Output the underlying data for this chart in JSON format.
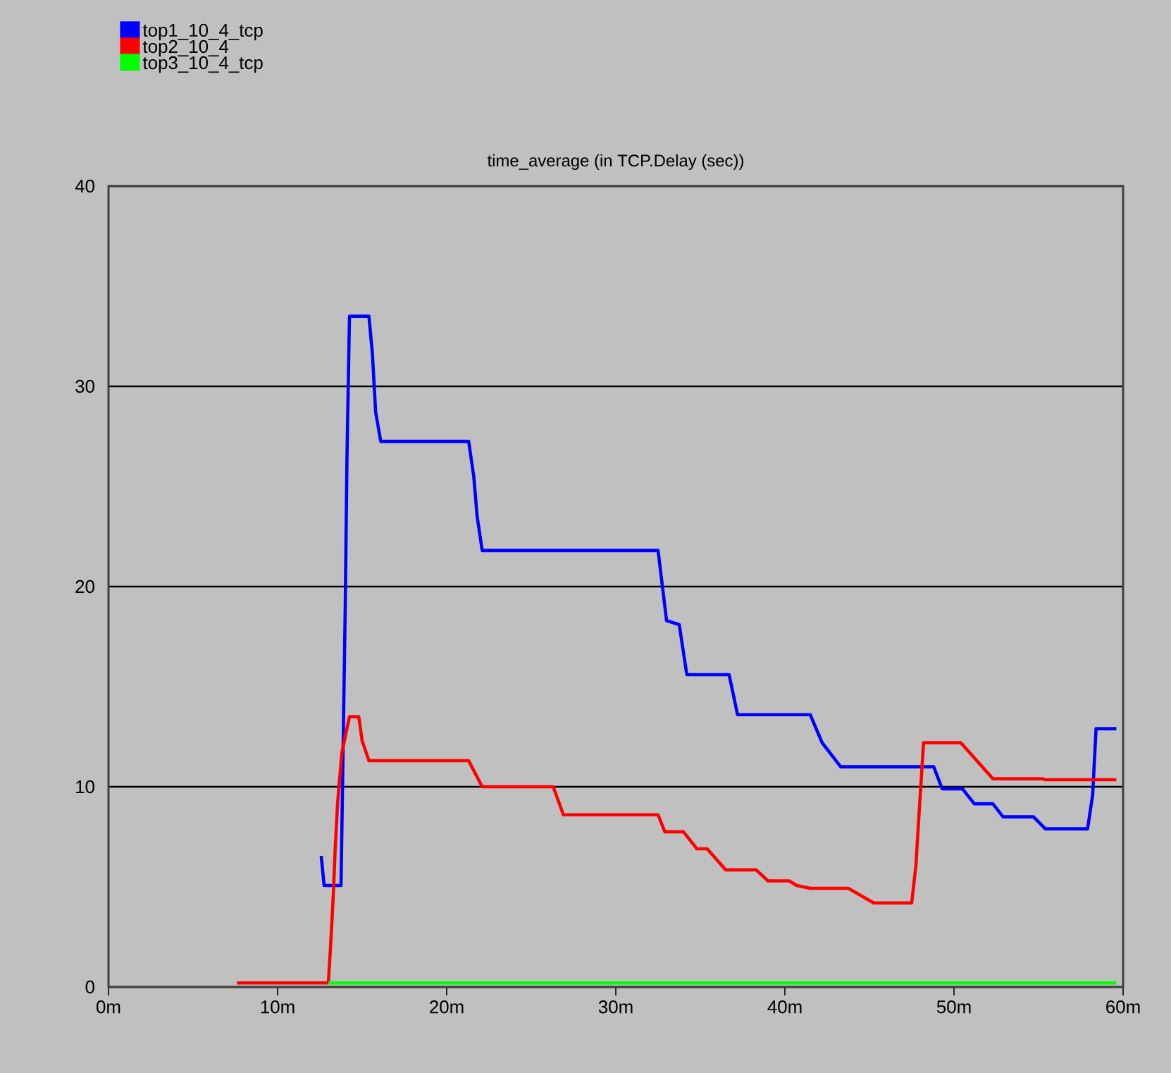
{
  "chart_data": {
    "type": "line",
    "title": "time_average (in TCP.Delay (sec))",
    "xlim": [
      0,
      60
    ],
    "ylim": [
      0,
      40
    ],
    "xticks": [
      {
        "value": 0,
        "label": "0m"
      },
      {
        "value": 10,
        "label": "10m"
      },
      {
        "value": 20,
        "label": "20m"
      },
      {
        "value": 30,
        "label": "30m"
      },
      {
        "value": 40,
        "label": "40m"
      },
      {
        "value": 50,
        "label": "50m"
      },
      {
        "value": 60,
        "label": "60m"
      }
    ],
    "yticks": [
      0,
      10,
      20,
      30,
      40
    ],
    "grid": "y",
    "legend": "top left",
    "series": [
      {
        "name": "top1_10_4_tcp",
        "color": "#0000ff",
        "x": [
          12.58,
          12.75,
          13.75,
          14.0,
          14.1,
          14.25,
          15.4,
          15.6,
          15.8,
          16.1,
          21.3,
          21.6,
          21.8,
          22.1,
          32.5,
          33.0,
          33.75,
          34.2,
          36.7,
          37.2,
          41.5,
          42.2,
          43.3,
          48.8,
          49.3,
          50.5,
          51.2,
          52.3,
          52.9,
          54.7,
          55.4,
          57.9,
          58.2,
          58.4,
          59.6
        ],
        "values": [
          6.55,
          5.07,
          5.07,
          19.0,
          26.3,
          33.5,
          33.5,
          31.7,
          28.7,
          27.25,
          27.25,
          25.5,
          23.5,
          21.8,
          21.8,
          18.3,
          18.1,
          15.6,
          15.6,
          13.6,
          13.6,
          12.2,
          11.0,
          11.0,
          9.9,
          9.9,
          9.15,
          9.15,
          8.5,
          8.5,
          7.9,
          7.9,
          9.6,
          12.9,
          12.9
        ]
      },
      {
        "name": "top2_10_4",
        "color": "#ff0000",
        "x": [
          7.6,
          13.0,
          13.15,
          13.3,
          13.4,
          13.55,
          13.8,
          14.25,
          14.8,
          15.0,
          15.4,
          21.3,
          22.1,
          26.3,
          26.9,
          32.5,
          32.9,
          34.0,
          34.8,
          35.4,
          36.5,
          38.3,
          39.0,
          40.25,
          40.7,
          41.5,
          43.75,
          45.25,
          47.5,
          47.75,
          47.9,
          48.2,
          50.4,
          52.3,
          55.25,
          55.4,
          59.6
        ],
        "values": [
          0.2,
          0.2,
          2.3,
          4.7,
          6.8,
          9.2,
          11.7,
          13.5,
          13.5,
          12.3,
          11.3,
          11.3,
          10.0,
          10.0,
          8.6,
          8.6,
          7.75,
          7.75,
          6.9,
          6.9,
          5.85,
          5.85,
          5.3,
          5.3,
          5.07,
          4.93,
          4.93,
          4.2,
          4.2,
          6.1,
          8.2,
          12.2,
          12.2,
          10.4,
          10.4,
          10.35,
          10.35
        ]
      },
      {
        "name": "top3_10_4_tcp",
        "color": "#00ff00",
        "x": [
          13.0,
          59.6
        ],
        "values": [
          0.2,
          0.2
        ]
      }
    ]
  }
}
